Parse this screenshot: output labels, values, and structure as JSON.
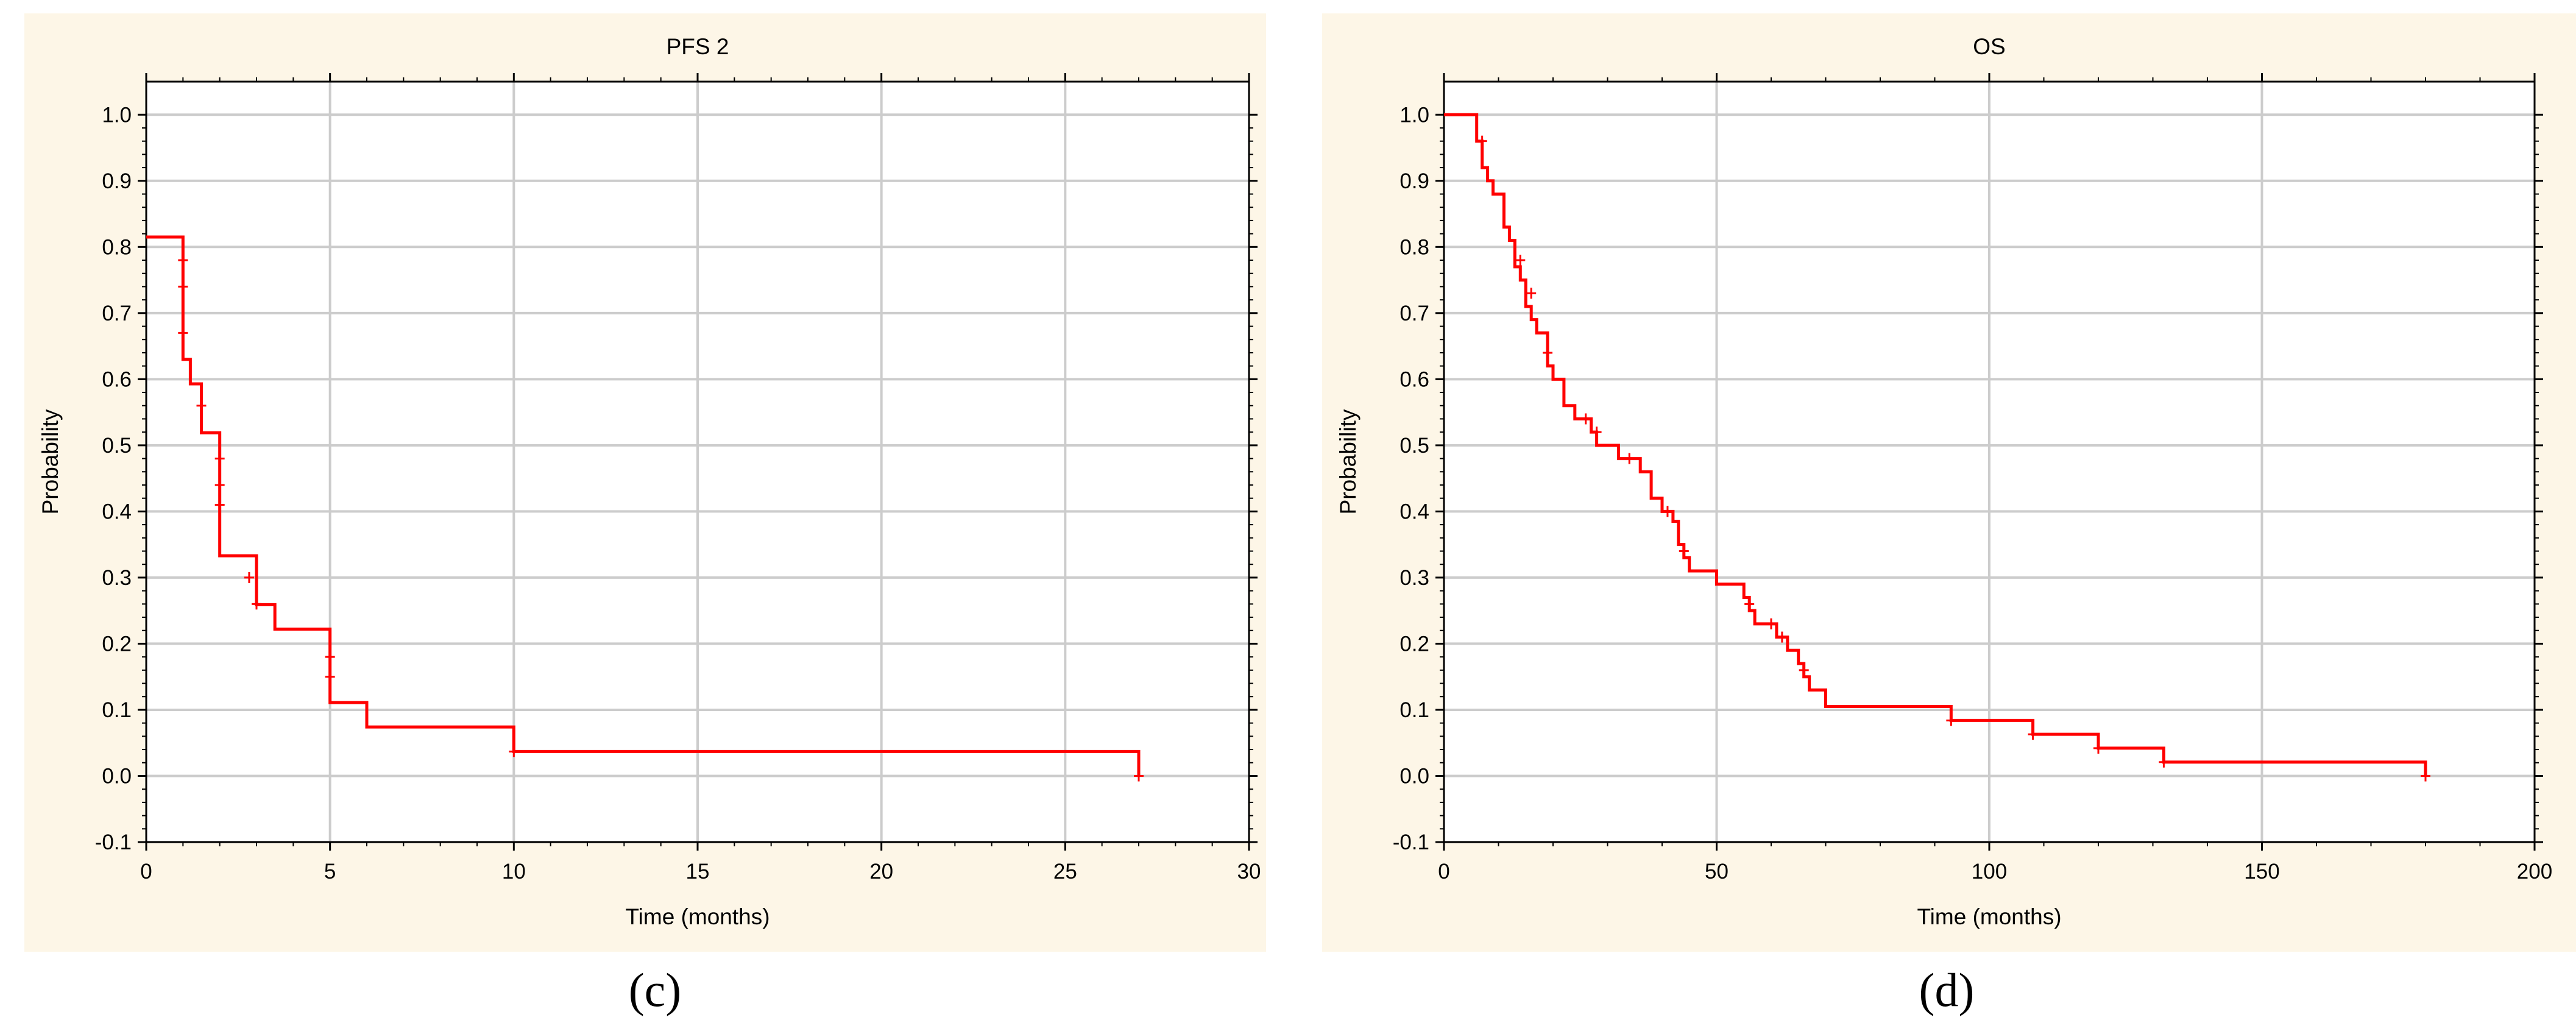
{
  "chart_data": [
    {
      "type": "line",
      "step": true,
      "title": "PFS 2",
      "xlabel": "Time (months)",
      "ylabel": "Probability",
      "xlim": [
        0,
        30
      ],
      "ylim": [
        -0.1,
        1.05
      ],
      "xticks": [
        "0",
        "5",
        "10",
        "15",
        "20",
        "25",
        "30"
      ],
      "xtick_values": [
        0,
        5,
        10,
        15,
        20,
        25,
        30
      ],
      "yticks": [
        "-0.1",
        "0.0",
        "0.1",
        "0.2",
        "0.3",
        "0.4",
        "0.5",
        "0.6",
        "0.7",
        "0.8",
        "0.9",
        "1.0"
      ],
      "ytick_values": [
        -0.1,
        0.0,
        0.1,
        0.2,
        0.3,
        0.4,
        0.5,
        0.6,
        0.7,
        0.8,
        0.9,
        1.0
      ],
      "grid": true,
      "line_color": "#ff0000",
      "series": [
        {
          "x": [
            0,
            1,
            1.2,
            1.5,
            1.9,
            2,
            3,
            3.5,
            5,
            6,
            10,
            27
          ],
          "y": [
            0.815,
            0.63,
            0.593,
            0.519,
            0.519,
            0.333,
            0.259,
            0.222,
            0.111,
            0.074,
            0.037,
            0.0
          ]
        }
      ],
      "censored": [
        {
          "x": 1,
          "y": 0.78
        },
        {
          "x": 1,
          "y": 0.74
        },
        {
          "x": 1,
          "y": 0.67
        },
        {
          "x": 1.5,
          "y": 0.56
        },
        {
          "x": 2,
          "y": 0.48
        },
        {
          "x": 2,
          "y": 0.44
        },
        {
          "x": 2,
          "y": 0.41
        },
        {
          "x": 2.8,
          "y": 0.3
        },
        {
          "x": 3,
          "y": 0.26
        },
        {
          "x": 5,
          "y": 0.18
        },
        {
          "x": 5,
          "y": 0.15
        },
        {
          "x": 10,
          "y": 0.037
        },
        {
          "x": 27,
          "y": 0.0
        }
      ],
      "caption": "(c)"
    },
    {
      "type": "line",
      "step": true,
      "title": "OS",
      "xlabel": "Time (months)",
      "ylabel": "Probability",
      "xlim": [
        0,
        200
      ],
      "ylim": [
        -0.1,
        1.05
      ],
      "xticks": [
        "0",
        "50",
        "100",
        "150",
        "200"
      ],
      "xtick_values": [
        0,
        50,
        100,
        150,
        200
      ],
      "yticks": [
        "-0.1",
        "0.0",
        "0.1",
        "0.2",
        "0.3",
        "0.4",
        "0.5",
        "0.6",
        "0.7",
        "0.8",
        "0.9",
        "1.0"
      ],
      "ytick_values": [
        -0.1,
        0.0,
        0.1,
        0.2,
        0.3,
        0.4,
        0.5,
        0.6,
        0.7,
        0.8,
        0.9,
        1.0
      ],
      "grid": true,
      "line_color": "#ff0000",
      "series": [
        {
          "x": [
            0,
            6,
            7,
            8,
            9,
            11,
            12,
            13,
            14,
            15,
            16,
            17,
            19,
            20,
            22,
            24,
            27,
            28,
            29,
            32,
            36,
            38,
            40,
            42,
            43,
            44,
            45,
            47,
            50,
            55,
            56,
            57,
            59,
            61,
            63,
            65,
            66,
            67,
            70,
            93,
            108,
            120,
            132,
            180
          ],
          "y": [
            1.0,
            0.96,
            0.92,
            0.9,
            0.88,
            0.83,
            0.81,
            0.77,
            0.75,
            0.71,
            0.69,
            0.67,
            0.62,
            0.6,
            0.56,
            0.54,
            0.52,
            0.5,
            0.5,
            0.48,
            0.46,
            0.42,
            0.4,
            0.385,
            0.35,
            0.33,
            0.31,
            0.31,
            0.29,
            0.27,
            0.25,
            0.23,
            0.23,
            0.21,
            0.19,
            0.17,
            0.15,
            0.13,
            0.105,
            0.084,
            0.063,
            0.042,
            0.021,
            0.0
          ]
        }
      ],
      "censored": [
        {
          "x": 7,
          "y": 0.96
        },
        {
          "x": 14,
          "y": 0.78
        },
        {
          "x": 16,
          "y": 0.73
        },
        {
          "x": 19,
          "y": 0.64
        },
        {
          "x": 26,
          "y": 0.54
        },
        {
          "x": 28,
          "y": 0.52
        },
        {
          "x": 34,
          "y": 0.48
        },
        {
          "x": 41,
          "y": 0.4
        },
        {
          "x": 44,
          "y": 0.34
        },
        {
          "x": 56,
          "y": 0.26
        },
        {
          "x": 60,
          "y": 0.23
        },
        {
          "x": 62,
          "y": 0.21
        },
        {
          "x": 66,
          "y": 0.16
        },
        {
          "x": 93,
          "y": 0.084
        },
        {
          "x": 108,
          "y": 0.063
        },
        {
          "x": 120,
          "y": 0.042
        },
        {
          "x": 132,
          "y": 0.021
        },
        {
          "x": 180,
          "y": 0.0
        }
      ],
      "caption": "(d)"
    }
  ]
}
